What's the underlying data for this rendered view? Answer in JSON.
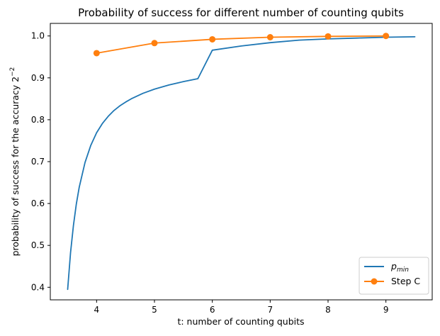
{
  "chart_data": {
    "type": "line",
    "title": "Probability of success for different number of counting qubits",
    "xlabel": "t: number of counting qubits",
    "ylabel": "probability of success for the accuracy 2",
    "ylabel_superscript": "−2",
    "xlim": [
      3.2,
      9.8
    ],
    "ylim": [
      0.37,
      1.03
    ],
    "xticks": [
      4,
      5,
      6,
      7,
      8,
      9
    ],
    "yticks": [
      0.4,
      0.5,
      0.6,
      0.7,
      0.8,
      0.9,
      1.0
    ],
    "ytick_labels": [
      "0.4",
      "0.5",
      "0.6",
      "0.7",
      "0.8",
      "0.9",
      "1.0"
    ],
    "grid": false,
    "legend_position": "lower-right",
    "series": [
      {
        "name": "p_min",
        "label_main": "p",
        "label_sub": "min",
        "color": "#1f77b4",
        "marker": "none",
        "x": [
          3.5,
          3.55,
          3.6,
          3.65,
          3.7,
          3.8,
          3.9,
          4.0,
          4.1,
          4.2,
          4.3,
          4.4,
          4.5,
          4.6,
          4.8,
          5.0,
          5.25,
          5.5,
          5.75,
          6.0,
          6.5,
          7.0,
          7.5,
          8.0,
          8.5,
          9.0,
          9.5
        ],
        "y": [
          0.395,
          0.483,
          0.548,
          0.599,
          0.639,
          0.698,
          0.739,
          0.769,
          0.791,
          0.808,
          0.822,
          0.833,
          0.842,
          0.85,
          0.863,
          0.873,
          0.883,
          0.891,
          0.898,
          0.966,
          0.976,
          0.984,
          0.99,
          0.993,
          0.995,
          0.997,
          0.998
        ]
      },
      {
        "name": "Step C",
        "color": "#ff7f0e",
        "marker": "circle",
        "x": [
          4,
          5,
          6,
          7,
          8,
          9
        ],
        "y": [
          0.959,
          0.983,
          0.992,
          0.997,
          0.999,
          1.0
        ]
      }
    ]
  }
}
